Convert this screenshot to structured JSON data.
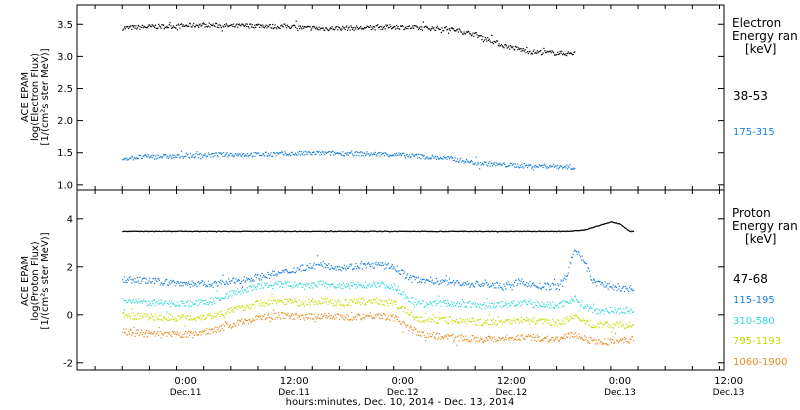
{
  "chart_data": [
    {
      "type": "scatter",
      "ylabel": [
        "ACE EPAM",
        "log(Electron Flux)",
        "[1/(cm²s ster MeV)]"
      ],
      "ylim": [
        0.92,
        3.8
      ],
      "yticks": [
        1.0,
        1.5,
        2.0,
        2.5,
        3.0,
        3.5
      ],
      "ytick_labels": [
        "1.0",
        "1.5",
        "2.0",
        "2.5",
        "3.0",
        "3.5"
      ],
      "legend_title": [
        "Electron",
        "Energy ran",
        "[keV]"
      ],
      "series": [
        {
          "name": "38-53",
          "color": "#000000",
          "hours": [
            0,
            6,
            12,
            18,
            24,
            30,
            34,
            36,
            38,
            40,
            42,
            44,
            48,
            54,
            60,
            66,
            72,
            78,
            84,
            90,
            96,
            100
          ],
          "values": [
            3.45,
            3.47,
            3.48,
            3.5,
            3.48,
            3.49,
            3.47,
            3.48,
            3.47,
            3.45,
            3.45,
            3.44,
            3.45,
            3.45,
            3.47,
            3.45,
            3.44,
            3.35,
            3.18,
            3.08,
            3.06,
            3.05
          ]
        },
        {
          "name": "175-315",
          "color": "#1a7fd8",
          "hours": [
            0,
            6,
            12,
            18,
            24,
            30,
            36,
            42,
            48,
            54,
            60,
            66,
            72,
            78,
            84,
            90,
            96,
            100
          ],
          "values": [
            1.42,
            1.45,
            1.45,
            1.47,
            1.48,
            1.48,
            1.49,
            1.5,
            1.5,
            1.49,
            1.48,
            1.45,
            1.42,
            1.35,
            1.32,
            1.3,
            1.3,
            1.28
          ]
        }
      ]
    },
    {
      "type": "scatter",
      "ylabel": [
        "ACE EPAM",
        "log(Proton Flux)",
        "[1/(cm²s ster MeV)]"
      ],
      "ylim": [
        -2.3,
        5.2
      ],
      "yticks": [
        -2,
        0,
        2,
        4
      ],
      "ytick_labels": [
        "-2",
        "0",
        "2",
        "4"
      ],
      "legend_title": [
        "Proton",
        "Energy ran",
        "[keV]"
      ],
      "series": [
        {
          "name": "47-68",
          "color": "#000000",
          "hours": [
            0,
            24,
            30,
            34,
            36,
            48,
            72,
            84,
            86,
            88,
            96,
            98,
            102,
            108,
            110,
            112,
            113
          ],
          "values": [
            3.5,
            3.5,
            3.5,
            3.5,
            3.5,
            3.5,
            3.5,
            3.5,
            3.5,
            3.5,
            3.5,
            3.5,
            3.55,
            3.9,
            3.8,
            3.5,
            3.5
          ]
        },
        {
          "name": "115-195",
          "color": "#1a7fd8",
          "hours": [
            0,
            8,
            16,
            20,
            24,
            30,
            36,
            40,
            44,
            48,
            56,
            60,
            64,
            66,
            70,
            72,
            76,
            80,
            84,
            88,
            92,
            96,
            98,
            100,
            102,
            104,
            106,
            108,
            110,
            113
          ],
          "values": [
            1.5,
            1.4,
            1.3,
            1.3,
            1.4,
            1.6,
            1.8,
            2.0,
            2.1,
            2.0,
            2.1,
            2.0,
            1.5,
            1.5,
            1.4,
            1.4,
            1.3,
            1.3,
            1.2,
            1.4,
            1.2,
            1.2,
            1.6,
            2.8,
            2.2,
            1.4,
            1.3,
            1.2,
            1.1,
            1.1
          ]
        },
        {
          "name": "310-580",
          "color": "#32d9d9",
          "hours": [
            0,
            8,
            16,
            20,
            24,
            30,
            36,
            40,
            44,
            48,
            56,
            60,
            64,
            66,
            72,
            80,
            88,
            96,
            100,
            102,
            104,
            108,
            113
          ],
          "values": [
            0.6,
            0.5,
            0.5,
            0.6,
            0.9,
            1.2,
            1.3,
            1.2,
            1.3,
            1.2,
            1.3,
            1.2,
            0.6,
            0.5,
            0.5,
            0.4,
            0.5,
            0.4,
            0.7,
            0.4,
            0.2,
            0.2,
            0.2
          ]
        },
        {
          "name": "795-1193",
          "color": "#c8dc00",
          "hours": [
            0,
            8,
            16,
            20,
            24,
            30,
            36,
            40,
            44,
            48,
            56,
            60,
            64,
            66,
            72,
            80,
            88,
            96,
            100,
            104,
            108,
            113
          ],
          "values": [
            0.0,
            -0.1,
            -0.1,
            0.0,
            0.2,
            0.5,
            0.6,
            0.5,
            0.6,
            0.5,
            0.6,
            0.5,
            0.0,
            -0.2,
            -0.2,
            -0.3,
            -0.2,
            -0.3,
            -0.1,
            -0.4,
            -0.4,
            -0.4
          ]
        },
        {
          "name": "1060-1900",
          "color": "#e8891e",
          "hours": [
            0,
            8,
            16,
            20,
            24,
            30,
            36,
            40,
            44,
            48,
            56,
            60,
            64,
            66,
            72,
            80,
            88,
            96,
            100,
            104,
            108,
            113
          ],
          "values": [
            -0.7,
            -0.8,
            -0.8,
            -0.6,
            -0.4,
            -0.1,
            0.0,
            -0.1,
            0.0,
            -0.1,
            0.0,
            -0.1,
            -0.6,
            -0.8,
            -0.9,
            -1.0,
            -0.9,
            -1.0,
            -0.8,
            -1.1,
            -1.1,
            -1.0
          ]
        }
      ]
    }
  ],
  "xaxis": {
    "xlim_hours": [
      -10,
      133
    ],
    "major_ticks": [
      {
        "hour": 14,
        "time": "0:00",
        "day": "Dec.11"
      },
      {
        "hour": 38,
        "time": "12:00",
        "day": "Dec.11"
      },
      {
        "hour": 62,
        "time": "0:00",
        "day": "Dec.12"
      },
      {
        "hour": 86,
        "time": "12:00",
        "day": "Dec.12"
      },
      {
        "hour": 110,
        "time": "0:00",
        "day": "Dec.13"
      },
      {
        "hour": 134,
        "time": "12:00",
        "day": "Dec.13"
      }
    ],
    "minor_step_hours": 6,
    "label": "hours:minutes, Dec. 10, 2014 - Dec. 13, 2014"
  }
}
